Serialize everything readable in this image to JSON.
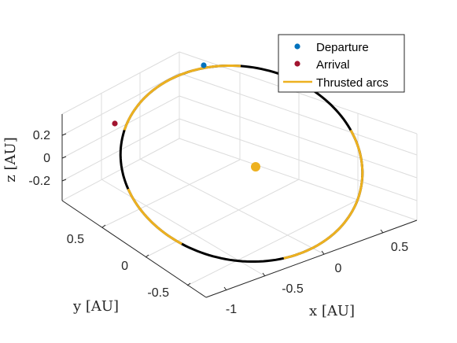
{
  "chart_data": {
    "type": "line",
    "title": "",
    "xlabel": "x [AU]",
    "ylabel": "y [AU]",
    "zlabel": "z [AU]",
    "x_ticks": [
      "-1",
      "-0.5",
      "0",
      "0.5"
    ],
    "y_ticks": [
      "0.5",
      "0",
      "-0.5"
    ],
    "z_ticks": [
      "0.2",
      "0",
      "-0.2"
    ],
    "xlim": [
      -1.2,
      0.8
    ],
    "ylim": [
      -0.8,
      0.8
    ],
    "zlim": [
      -0.35,
      0.35
    ],
    "grid": true,
    "legend_position": "top-right",
    "legend": [
      {
        "name": "Departure",
        "color": "#0072BD",
        "marker": "dot"
      },
      {
        "name": "Arrival",
        "color": "#A2142F",
        "marker": "dot"
      },
      {
        "name": "Thrusted arcs",
        "color": "#EDB120",
        "marker": "line"
      }
    ],
    "orbit": {
      "color": "#000000",
      "thrust_color": "#EDB120"
    },
    "sun": {
      "x": 0,
      "y": 0,
      "z": 0,
      "color": "#EDB120"
    },
    "departure": {
      "x": 0.55,
      "y": 0.55,
      "z": 0.2
    },
    "arrival": {
      "x": -0.72,
      "y": 0.68,
      "z": 0.15
    },
    "thrusted_arcs_deg": [
      [
        100,
        175
      ],
      [
        210,
        250
      ],
      [
        300,
        395
      ]
    ]
  }
}
